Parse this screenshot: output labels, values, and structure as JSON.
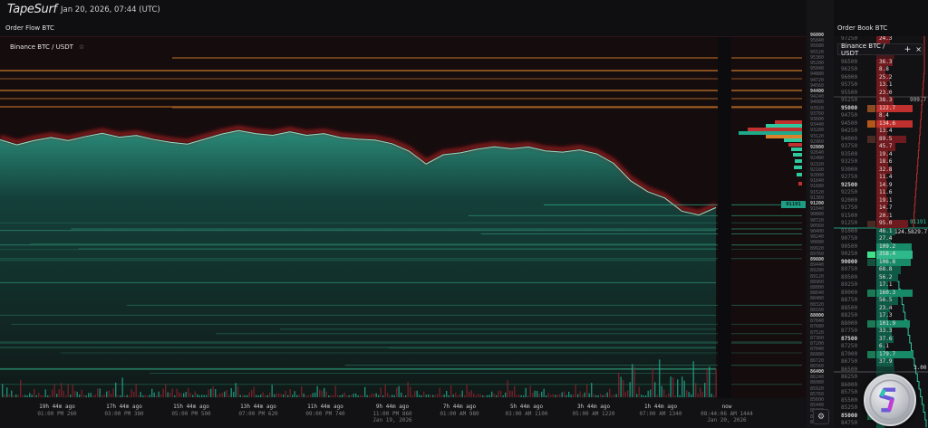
{
  "header": {
    "logo": "TapeSurf",
    "datetime": "Jan 20, 2026, 07:44 (UTC)"
  },
  "order_flow": {
    "title": "Order Flow BTC",
    "symbol": "Binance BTC / USDT",
    "star_icon": "star-icon"
  },
  "order_book": {
    "title": "Order Book BTC",
    "popup": {
      "symbol": "Binance BTC / USDT",
      "add_label": "+",
      "close_label": "×"
    },
    "rows": [
      {
        "price": "97250",
        "size": "24.3",
        "side": "ask"
      },
      {
        "price": "",
        "size": "",
        "side": "ask"
      },
      {
        "price": "",
        "size": "",
        "side": "ask"
      },
      {
        "price": "96500",
        "size": "36.3",
        "side": "ask"
      },
      {
        "price": "96250",
        "size": "8.8",
        "side": "ask"
      },
      {
        "price": "96000",
        "size": "25.2",
        "side": "ask"
      },
      {
        "price": "95750",
        "size": "13.1",
        "side": "ask"
      },
      {
        "price": "95500",
        "size": "23.0",
        "side": "ask"
      },
      {
        "price": "95250",
        "size": "38.3",
        "side": "ask"
      },
      {
        "price": "95000",
        "size": "122.7",
        "side": "ask",
        "ind": "#8a4a22"
      },
      {
        "price": "94750",
        "size": "8.4",
        "side": "ask"
      },
      {
        "price": "94500",
        "size": "134.6",
        "side": "ask",
        "ind": "#b2561c"
      },
      {
        "price": "94250",
        "size": "13.4",
        "side": "ask"
      },
      {
        "price": "94000",
        "size": "89.5",
        "side": "ask",
        "ind": "#4a2a22"
      },
      {
        "price": "93750",
        "size": "45.7",
        "side": "ask"
      },
      {
        "price": "93500",
        "size": "19.4",
        "side": "ask"
      },
      {
        "price": "93250",
        "size": "18.6",
        "side": "ask"
      },
      {
        "price": "93000",
        "size": "32.8",
        "side": "ask"
      },
      {
        "price": "92750",
        "size": "11.4",
        "side": "ask"
      },
      {
        "price": "92500",
        "size": "14.9",
        "side": "ask"
      },
      {
        "price": "92250",
        "size": "11.6",
        "side": "ask"
      },
      {
        "price": "92000",
        "size": "19.1",
        "side": "ask"
      },
      {
        "price": "91750",
        "size": "14.7",
        "side": "ask"
      },
      {
        "price": "91500",
        "size": "20.1",
        "side": "ask"
      },
      {
        "price": "91250",
        "size": "95.0",
        "side": "ask",
        "ind": "#4a2a20"
      },
      {
        "price": "91000",
        "size": "46.1",
        "side": "bid"
      },
      {
        "price": "90750",
        "size": "27.4",
        "side": "bid"
      },
      {
        "price": "90500",
        "size": "109.2",
        "side": "bid"
      },
      {
        "price": "90250",
        "size": "358.4",
        "side": "bid",
        "ind": "#3fe08a"
      },
      {
        "price": "90000",
        "size": "106.8",
        "side": "bid",
        "ind": "#14503c"
      },
      {
        "price": "89750",
        "size": "68.8",
        "side": "bid"
      },
      {
        "price": "89500",
        "size": "56.2",
        "side": "bid"
      },
      {
        "price": "89250",
        "size": "17.1",
        "side": "bid"
      },
      {
        "price": "89000",
        "size": "160.3",
        "side": "bid",
        "ind": "#1b7a55"
      },
      {
        "price": "88750",
        "size": "56.5",
        "side": "bid"
      },
      {
        "price": "88500",
        "size": "23.4",
        "side": "bid"
      },
      {
        "price": "88250",
        "size": "17.3",
        "side": "bid"
      },
      {
        "price": "88000",
        "size": "101.9",
        "side": "bid",
        "ind": "#1b7a55"
      },
      {
        "price": "87750",
        "size": "33.3",
        "side": "bid"
      },
      {
        "price": "87500",
        "size": "37.6",
        "side": "bid"
      },
      {
        "price": "87250",
        "size": "6.1",
        "side": "bid"
      },
      {
        "price": "87000",
        "size": "179.7",
        "side": "bid",
        "ind": "#1b7a55"
      },
      {
        "price": "86750",
        "size": "37.9",
        "side": "bid"
      },
      {
        "price": "86500",
        "size": "",
        "side": "bid"
      },
      {
        "price": "86250",
        "size": "",
        "side": "bid"
      },
      {
        "price": "86000",
        "size": "",
        "side": "bid"
      },
      {
        "price": "85750",
        "size": "",
        "side": "bid"
      },
      {
        "price": "85500",
        "size": "",
        "side": "bid"
      },
      {
        "price": "85250",
        "size": "",
        "side": "bid"
      },
      {
        "price": "85000",
        "size": "",
        "side": "bid",
        "ind": "#1b7a55"
      },
      {
        "price": "84750",
        "size": "4.3",
        "side": "bid"
      }
    ],
    "annotations": {
      "top_total": "999.7",
      "last_price": "91191",
      "spread_size": "124.5",
      "bid_total": "829.7",
      "ratio": "1.00"
    }
  },
  "chart": {
    "current_price": "91191",
    "price_labels": [
      96000,
      95840,
      95680,
      95520,
      95360,
      95200,
      95040,
      94880,
      94720,
      94560,
      94400,
      94240,
      94080,
      93920,
      93760,
      93600,
      93440,
      93280,
      93120,
      92960,
      92800,
      92640,
      92480,
      92320,
      92160,
      92000,
      91840,
      91680,
      91520,
      91360,
      91200,
      91040,
      90880,
      90720,
      90560,
      90400,
      90240,
      90080,
      89920,
      89760,
      89600,
      89440,
      89280,
      89120,
      88960,
      88800,
      88640,
      88480,
      88320,
      88160,
      88000,
      87840,
      87680,
      87520,
      87360,
      87200,
      87040,
      86880,
      86720,
      86560,
      86400,
      86240,
      86080,
      85920,
      85760,
      85600,
      85440,
      85280,
      85120,
      84960
    ],
    "price_trace": [
      93010,
      92935,
      93010,
      93090,
      93040,
      93140,
      93220,
      93140,
      93190,
      93060,
      92990,
      92935,
      93090,
      93190,
      93300,
      93240,
      93190,
      93240,
      93190,
      93220,
      93140,
      93090,
      93010,
      92935,
      92755,
      92370,
      92630,
      92680,
      92810,
      92880,
      92780,
      92830,
      92755,
      92680,
      92730,
      92630,
      92370,
      91860,
      91600,
      91390,
      91030,
      90930,
      91080
    ],
    "time_labels": [
      {
        "ago": "19h 44m ago",
        "time": "01:00 PM 260"
      },
      {
        "ago": "17h 44m ago",
        "time": "03:00 PM 380"
      },
      {
        "ago": "15h 44m ago",
        "time": "05:00 PM 500"
      },
      {
        "ago": "13h 44m ago",
        "time": "07:00 PM 620"
      },
      {
        "ago": "11h 44m ago",
        "time": "09:00 PM 740"
      },
      {
        "ago": "9h 44m ago",
        "time": "11:00 PM 860",
        "date": "Jan 19, 2026"
      },
      {
        "ago": "7h 44m ago",
        "time": "01:00 AM 980"
      },
      {
        "ago": "5h 44m ago",
        "time": "03:00 AM 1100"
      },
      {
        "ago": "3h 44m ago",
        "time": "05:00 AM 1220"
      },
      {
        "ago": "1h 44m ago",
        "time": "07:00 AM 1340"
      },
      {
        "ago": "now",
        "time": "08:44:06 AM 1444",
        "date": "Jan 20, 2026"
      }
    ],
    "colors": {
      "ask": "#c0302e",
      "bid": "#1fa88a",
      "resting_ask": "#d9822b",
      "resting_bid": "#2a8a6e"
    }
  },
  "controls": {
    "settings_icon": "settings-icon"
  }
}
